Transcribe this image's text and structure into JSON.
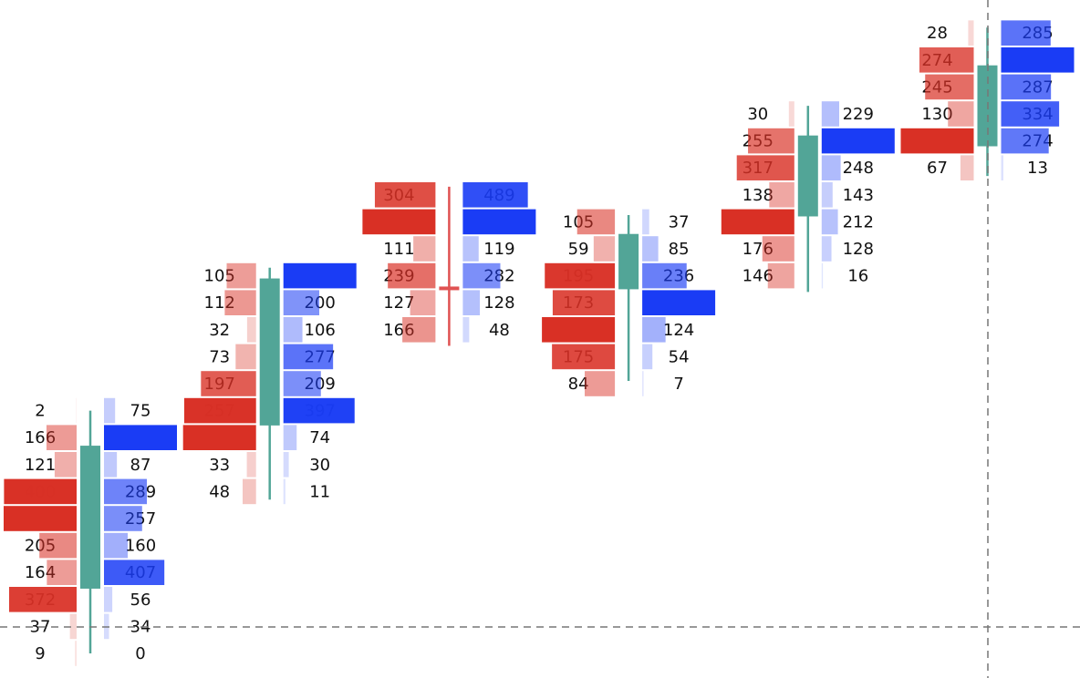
{
  "chart_data": {
    "type": "footprint",
    "ylim": [
      -0.5,
      23.5
    ],
    "bid_color": "#d93025",
    "ask_color": "#1a3cf5",
    "up_color": "#52a597",
    "down_color": "#e05252",
    "columns": [
      {
        "top_level": 9,
        "bid": [
          2,
          166,
          121,
          400,
          402,
          205,
          164,
          372,
          37,
          9
        ],
        "ask": [
          75,
          492,
          87,
          289,
          257,
          160,
          407,
          56,
          34,
          0
        ],
        "open": 2.4,
        "high": 9,
        "low": 0,
        "close": 7.7
      },
      {
        "top_level": 14,
        "bid": [
          105,
          112,
          32,
          73,
          197,
          257,
          261,
          33,
          48
        ],
        "ask": [
          407,
          200,
          106,
          277,
          209,
          397,
          74,
          30,
          11
        ],
        "open": 8.45,
        "high": 14.3,
        "low": 5.7,
        "close": 13.9
      },
      {
        "top_level": 17,
        "bid": [
          304,
          366,
          111,
          239,
          127,
          166
        ],
        "ask": [
          489,
          549,
          119,
          282,
          128,
          48
        ],
        "open": 13.6,
        "high": 17.3,
        "low": 11.4,
        "close": 13.5
      },
      {
        "top_level": 16,
        "bid": [
          105,
          59,
          195,
          173,
          203,
          175,
          84
        ],
        "ask": [
          37,
          85,
          236,
          388,
          124,
          54,
          7
        ],
        "open": 13.5,
        "high": 16.25,
        "low": 10.1,
        "close": 15.55
      },
      {
        "top_level": 20,
        "bid": [
          30,
          255,
          317,
          138,
          402,
          176,
          146
        ],
        "ask": [
          229,
          954,
          248,
          143,
          212,
          128,
          16
        ],
        "open": 16.2,
        "high": 20.3,
        "low": 13.4,
        "close": 19.2
      },
      {
        "top_level": 23,
        "bid": [
          28,
          274,
          245,
          130,
          368,
          67
        ],
        "ask": [
          285,
          420,
          287,
          334,
          274,
          13
        ],
        "open": 18.8,
        "high": 23.2,
        "low": 17.7,
        "close": 21.8
      }
    ]
  }
}
